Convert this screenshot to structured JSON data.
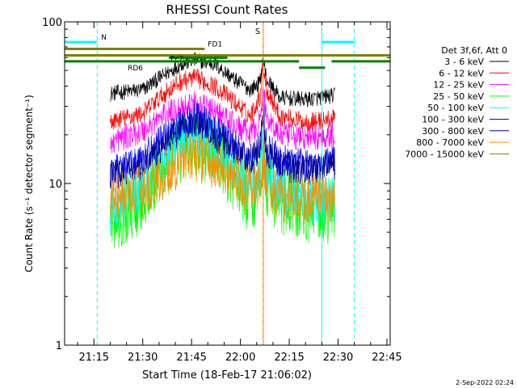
{
  "chart_data": {
    "type": "line",
    "title": "RHESSI Count Rates",
    "xlabel": "Start Time (18-Feb-17 21:06:02)",
    "ylabel": "Count Rate (s⁻¹ detector segment⁻¹)",
    "yscale": "log",
    "xlim": [
      "21:06",
      "22:46"
    ],
    "ylim": [
      1,
      100
    ],
    "x_ticks": [
      "21:15",
      "21:30",
      "21:45",
      "22:00",
      "22:15",
      "22:30",
      "22:45"
    ],
    "y_ticks": [
      "1",
      "10",
      "100"
    ],
    "legend_title": "Det 3f,6f, Att 0",
    "legend_position": "right",
    "data_window": [
      "21:20",
      "22:29"
    ],
    "series": [
      {
        "name": "3 - 6 keV",
        "color": "#000000",
        "x": [
          "21:20",
          "21:30",
          "21:36",
          "21:42",
          "21:46",
          "21:52",
          "21:58",
          "22:03",
          "22:06",
          "22:07",
          "22:08",
          "22:12",
          "22:20",
          "22:29"
        ],
        "y": [
          36,
          38,
          46,
          55,
          58,
          55,
          44,
          38,
          42,
          58,
          44,
          34,
          33,
          35
        ]
      },
      {
        "name": "6 - 12 keV",
        "color": "#ff0000",
        "x": [
          "21:20",
          "21:30",
          "21:36",
          "21:42",
          "21:46",
          "21:52",
          "21:58",
          "22:03",
          "22:06",
          "22:07",
          "22:08",
          "22:12",
          "22:20",
          "22:29"
        ],
        "y": [
          24,
          27,
          35,
          43,
          45,
          40,
          32,
          26,
          34,
          54,
          38,
          26,
          24,
          25
        ]
      },
      {
        "name": "12 - 25 keV",
        "color": "#ff00ff",
        "x": [
          "21:20",
          "21:30",
          "21:36",
          "21:42",
          "21:46",
          "21:52",
          "21:58",
          "22:03",
          "22:06",
          "22:07",
          "22:08",
          "22:12",
          "22:20",
          "22:29"
        ],
        "y": [
          18,
          21,
          26,
          30,
          31,
          28,
          23,
          20,
          24,
          36,
          26,
          20,
          19,
          20
        ]
      },
      {
        "name": "25 - 50 keV",
        "color": "#00ff00",
        "x": [
          "21:20",
          "21:30",
          "21:36",
          "21:42",
          "21:46",
          "21:52",
          "21:58",
          "22:03",
          "22:06",
          "22:07",
          "22:08",
          "22:12",
          "22:20",
          "22:29"
        ],
        "y": [
          6,
          8,
          12,
          17,
          18,
          15,
          11,
          8,
          10,
          17,
          10,
          8,
          7,
          7
        ]
      },
      {
        "name": "50 - 100 keV",
        "color": "#00ffff",
        "x": [
          "21:20",
          "21:30",
          "21:36",
          "21:42",
          "21:46",
          "21:52",
          "21:58",
          "22:03",
          "22:06",
          "22:07",
          "22:08",
          "22:12",
          "22:20",
          "22:29"
        ],
        "y": [
          7,
          9,
          14,
          20,
          22,
          18,
          13,
          10,
          12,
          20,
          12,
          9,
          8,
          8
        ]
      },
      {
        "name": "100 - 300 keV",
        "color": "#0000ff",
        "x": [
          "21:20",
          "21:30",
          "21:36",
          "21:42",
          "21:46",
          "21:52",
          "21:58",
          "22:03",
          "22:06",
          "22:07",
          "22:08",
          "22:12",
          "22:20",
          "22:29"
        ],
        "y": [
          12,
          14,
          19,
          24,
          26,
          22,
          17,
          14,
          17,
          28,
          17,
          14,
          13,
          14
        ]
      },
      {
        "name": "300 - 800 keV",
        "color": "#00008b",
        "x": [
          "21:20",
          "21:30",
          "21:36",
          "21:42",
          "21:46",
          "21:52",
          "21:58",
          "22:03",
          "22:06",
          "22:07",
          "22:08",
          "22:12",
          "22:20",
          "22:29"
        ],
        "y": [
          11,
          13,
          17,
          22,
          24,
          20,
          16,
          13,
          16,
          25,
          16,
          13,
          12,
          13
        ]
      },
      {
        "name": "800 - 7000 keV",
        "color": "#ff8c00",
        "x": [
          "21:20",
          "21:30",
          "21:36",
          "21:42",
          "21:46",
          "21:52",
          "21:58",
          "22:03",
          "22:06",
          "22:07",
          "22:08",
          "22:12",
          "22:20",
          "22:29"
        ],
        "y": [
          8,
          9,
          11,
          14,
          15,
          13,
          11,
          9,
          10,
          14,
          10,
          8,
          8,
          8
        ]
      },
      {
        "name": "7000 - 15000 keV",
        "color": "#8b8000",
        "x": [],
        "y": []
      }
    ],
    "attenuator_bars": [
      {
        "label": "N",
        "color": "#00ffff",
        "x": [
          "21:06",
          "21:16"
        ],
        "y": 75
      },
      {
        "label": "",
        "color": "#00ffff",
        "x": [
          "22:25",
          "22:35"
        ],
        "y": 75
      },
      {
        "label": "FD1",
        "color": "#808000",
        "x": [
          "21:06",
          "21:49"
        ],
        "y": 68
      },
      {
        "label": "",
        "color": "#808000",
        "x": [
          "21:06",
          "22:46"
        ],
        "y": 62
      },
      {
        "label": "Ec2",
        "color": "#008000",
        "x": [
          "21:38",
          "21:56"
        ],
        "y": 60
      },
      {
        "label": "RD6",
        "color": "#008000",
        "x": [
          "21:06",
          "22:18"
        ],
        "y": 57
      },
      {
        "label": "",
        "color": "#008000",
        "x": [
          "22:18",
          "22:26"
        ],
        "y": 52
      },
      {
        "label": "",
        "color": "#008000",
        "x": [
          "22:28",
          "22:46"
        ],
        "y": 57
      }
    ],
    "vertical_markers": [
      {
        "label": "",
        "color": "#00ffff",
        "style": "solid",
        "x": "21:06"
      },
      {
        "label": "",
        "color": "#00ffff",
        "style": "dashed",
        "x": "21:16"
      },
      {
        "label": "S",
        "color": "#ff8c00",
        "style": "solid",
        "x": "22:07"
      },
      {
        "label": "",
        "color": "#ff8c00",
        "style": "dashed",
        "x": "22:07"
      },
      {
        "label": "",
        "color": "#00ffff",
        "style": "solid",
        "x": "22:25"
      },
      {
        "label": "",
        "color": "#00ffff",
        "style": "dashed",
        "x": "22:35"
      }
    ]
  },
  "footer": {
    "date_stamp": "2-Sep-2022 02:24"
  }
}
